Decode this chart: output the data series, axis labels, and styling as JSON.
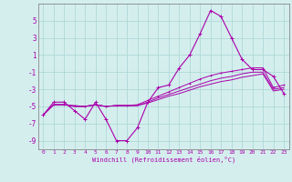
{
  "xlabel": "Windchill (Refroidissement éolien,°C)",
  "background_color": "#d4eeee",
  "grid_color": "#b0d8d8",
  "line_color": "#aa00aa",
  "spine_color": "#888888",
  "line1_x": [
    0,
    1,
    2,
    3,
    4,
    5,
    6,
    7,
    8,
    9,
    10,
    11,
    12,
    13,
    14,
    15,
    16,
    17,
    18,
    19,
    20,
    21,
    22,
    23
  ],
  "line1_y": [
    -6.0,
    -4.5,
    -4.5,
    -5.5,
    -6.5,
    -4.5,
    -6.5,
    -9.0,
    -9.0,
    -7.5,
    -4.5,
    -2.8,
    -2.5,
    -0.5,
    1.0,
    3.5,
    6.2,
    5.5,
    3.0,
    0.5,
    -0.7,
    -0.7,
    -1.5,
    -3.5
  ],
  "line2_x": [
    0,
    1,
    2,
    3,
    4,
    5,
    6,
    7,
    8,
    9,
    10,
    11,
    12,
    13,
    14,
    15,
    16,
    17,
    18,
    19,
    20,
    21,
    22,
    23
  ],
  "line2_y": [
    -6.0,
    -4.8,
    -4.8,
    -4.9,
    -5.0,
    -4.8,
    -5.0,
    -4.9,
    -4.9,
    -4.8,
    -4.3,
    -3.8,
    -3.3,
    -2.8,
    -2.3,
    -1.8,
    -1.4,
    -1.1,
    -0.9,
    -0.7,
    -0.5,
    -0.5,
    -2.8,
    -2.5
  ],
  "line3_x": [
    0,
    1,
    2,
    3,
    4,
    5,
    6,
    7,
    8,
    9,
    10,
    11,
    12,
    13,
    14,
    15,
    16,
    17,
    18,
    19,
    20,
    21,
    22,
    23
  ],
  "line3_y": [
    -6.0,
    -4.8,
    -4.8,
    -5.0,
    -5.0,
    -4.8,
    -5.0,
    -4.9,
    -4.9,
    -4.9,
    -4.5,
    -4.0,
    -3.6,
    -3.2,
    -2.8,
    -2.4,
    -2.0,
    -1.7,
    -1.5,
    -1.2,
    -1.0,
    -1.0,
    -3.0,
    -2.8
  ],
  "line4_x": [
    0,
    1,
    2,
    3,
    4,
    5,
    6,
    7,
    8,
    9,
    10,
    11,
    12,
    13,
    14,
    15,
    16,
    17,
    18,
    19,
    20,
    21,
    22,
    23
  ],
  "line4_y": [
    -6.0,
    -4.8,
    -4.8,
    -5.0,
    -5.0,
    -4.8,
    -5.0,
    -4.9,
    -4.9,
    -4.9,
    -4.6,
    -4.2,
    -3.8,
    -3.5,
    -3.1,
    -2.7,
    -2.4,
    -2.1,
    -1.9,
    -1.6,
    -1.4,
    -1.2,
    -3.2,
    -3.0
  ],
  "ylim": [
    -10,
    7
  ],
  "yticks": [
    -9,
    -7,
    -5,
    -3,
    -1,
    1,
    3,
    5
  ],
  "xticks": [
    0,
    1,
    2,
    3,
    4,
    5,
    6,
    7,
    8,
    9,
    10,
    11,
    12,
    13,
    14,
    15,
    16,
    17,
    18,
    19,
    20,
    21,
    22,
    23
  ]
}
